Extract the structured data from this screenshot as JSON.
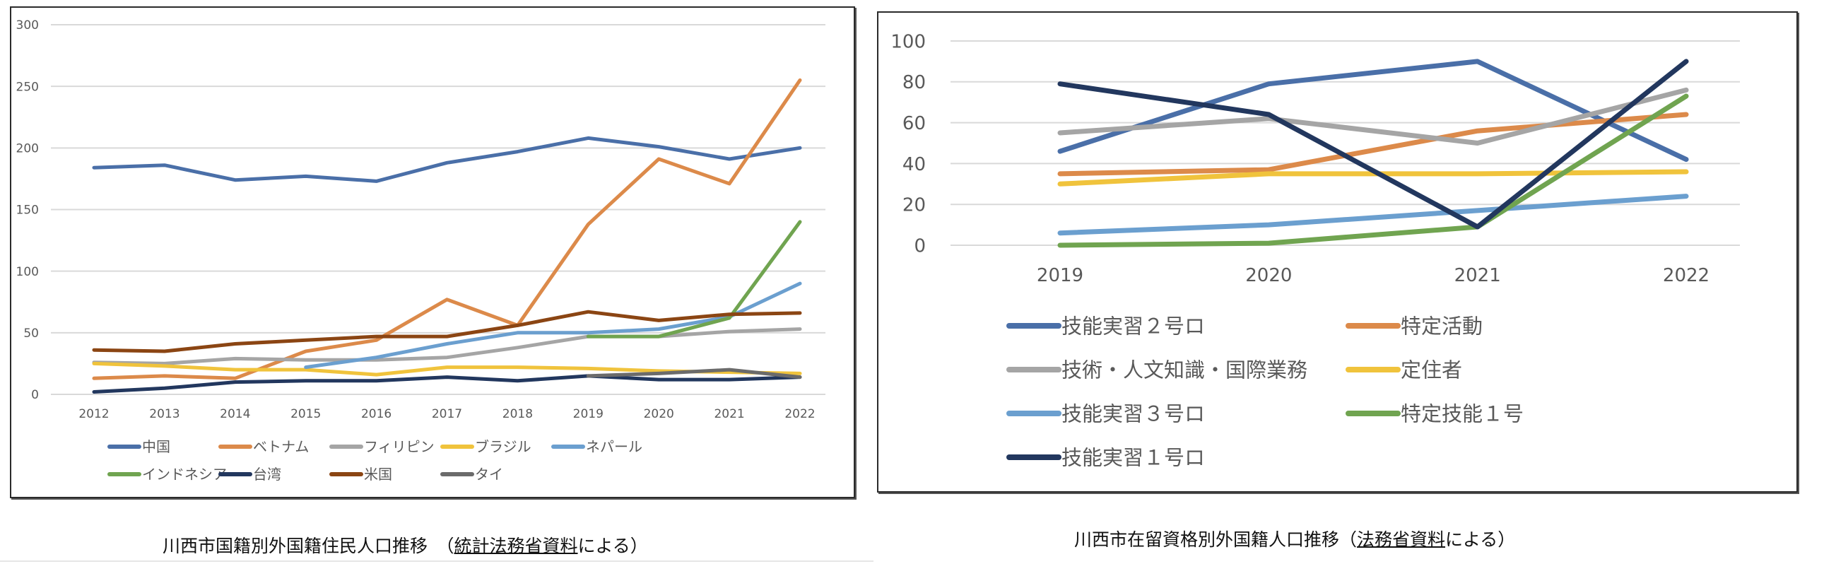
{
  "chart_data": [
    {
      "id": "left",
      "type": "line",
      "title": "",
      "xlabel": "",
      "ylabel": "",
      "ylim": [
        0,
        300
      ],
      "yticks": [
        0,
        50,
        100,
        150,
        200,
        250,
        300
      ],
      "grid": true,
      "legend_position": "bottom",
      "categories": [
        "2012",
        "2013",
        "2014",
        "2015",
        "2016",
        "2017",
        "2018",
        "2019",
        "2020",
        "2021",
        "2022"
      ],
      "series": [
        {
          "name": "中国",
          "color": "#4a6fa8",
          "values": [
            184,
            186,
            174,
            177,
            173,
            188,
            197,
            208,
            201,
            191,
            200
          ]
        },
        {
          "name": "ベトナム",
          "color": "#dc8a4a",
          "values": [
            13,
            15,
            13,
            35,
            44,
            77,
            56,
            138,
            191,
            171,
            255
          ]
        },
        {
          "name": "フィリピン",
          "color": "#a5a5a5",
          "values": [
            26,
            25,
            29,
            28,
            28,
            30,
            38,
            47,
            47,
            51,
            53
          ]
        },
        {
          "name": "ブラジル",
          "color": "#f0c33c",
          "values": [
            25,
            23,
            20,
            20,
            16,
            22,
            22,
            21,
            19,
            18,
            17
          ]
        },
        {
          "name": "ネパール",
          "color": "#6b9fcf",
          "values": [
            null,
            null,
            null,
            22,
            30,
            41,
            50,
            50,
            53,
            63,
            90
          ]
        },
        {
          "name": "インドネシア",
          "color": "#70a450",
          "values": [
            null,
            null,
            null,
            null,
            null,
            null,
            null,
            47,
            47,
            62,
            140
          ]
        },
        {
          "name": "台湾",
          "color": "#22375e",
          "values": [
            2,
            5,
            10,
            11,
            11,
            14,
            11,
            15,
            12,
            12,
            14
          ]
        },
        {
          "name": "米国",
          "color": "#8b4513",
          "values": [
            36,
            35,
            41,
            44,
            47,
            47,
            56,
            67,
            60,
            65,
            66
          ]
        },
        {
          "name": "タイ",
          "color": "#6b6b6b",
          "values": [
            null,
            null,
            null,
            null,
            null,
            null,
            null,
            15,
            17,
            20,
            14
          ]
        }
      ]
    },
    {
      "id": "right",
      "type": "line",
      "title": "",
      "xlabel": "",
      "ylabel": "",
      "ylim": [
        0,
        100
      ],
      "yticks": [
        0,
        20,
        40,
        60,
        80,
        100
      ],
      "grid": true,
      "legend_position": "bottom",
      "categories": [
        "2019",
        "2020",
        "2021",
        "2022"
      ],
      "series": [
        {
          "name": "技能実習２号ロ",
          "color": "#4a6fa8",
          "values": [
            46,
            79,
            90,
            42
          ]
        },
        {
          "name": "特定活動",
          "color": "#dc8a4a",
          "values": [
            35,
            37,
            56,
            64
          ]
        },
        {
          "name": "技術・人文知識・国際業務",
          "color": "#a5a5a5",
          "values": [
            55,
            62,
            50,
            76
          ]
        },
        {
          "name": "定住者",
          "color": "#f0c33c",
          "values": [
            30,
            35,
            35,
            36
          ]
        },
        {
          "name": "技能実習３号ロ",
          "color": "#6b9fcf",
          "values": [
            6,
            10,
            17,
            24
          ]
        },
        {
          "name": "特定技能１号",
          "color": "#70a450",
          "values": [
            0,
            1,
            9,
            73
          ]
        },
        {
          "name": "技能実習１号ロ",
          "color": "#22375e",
          "values": [
            79,
            64,
            9,
            90
          ]
        }
      ]
    }
  ],
  "captions": {
    "left": {
      "prefix": "川西市国籍別外国籍住民人口推移　（",
      "link": "統計法務省資料",
      "suffix": "による）"
    },
    "right": {
      "prefix": "川西市在留資格別外国籍人口推移（",
      "link": "法務省資料",
      "suffix": "による）"
    }
  }
}
